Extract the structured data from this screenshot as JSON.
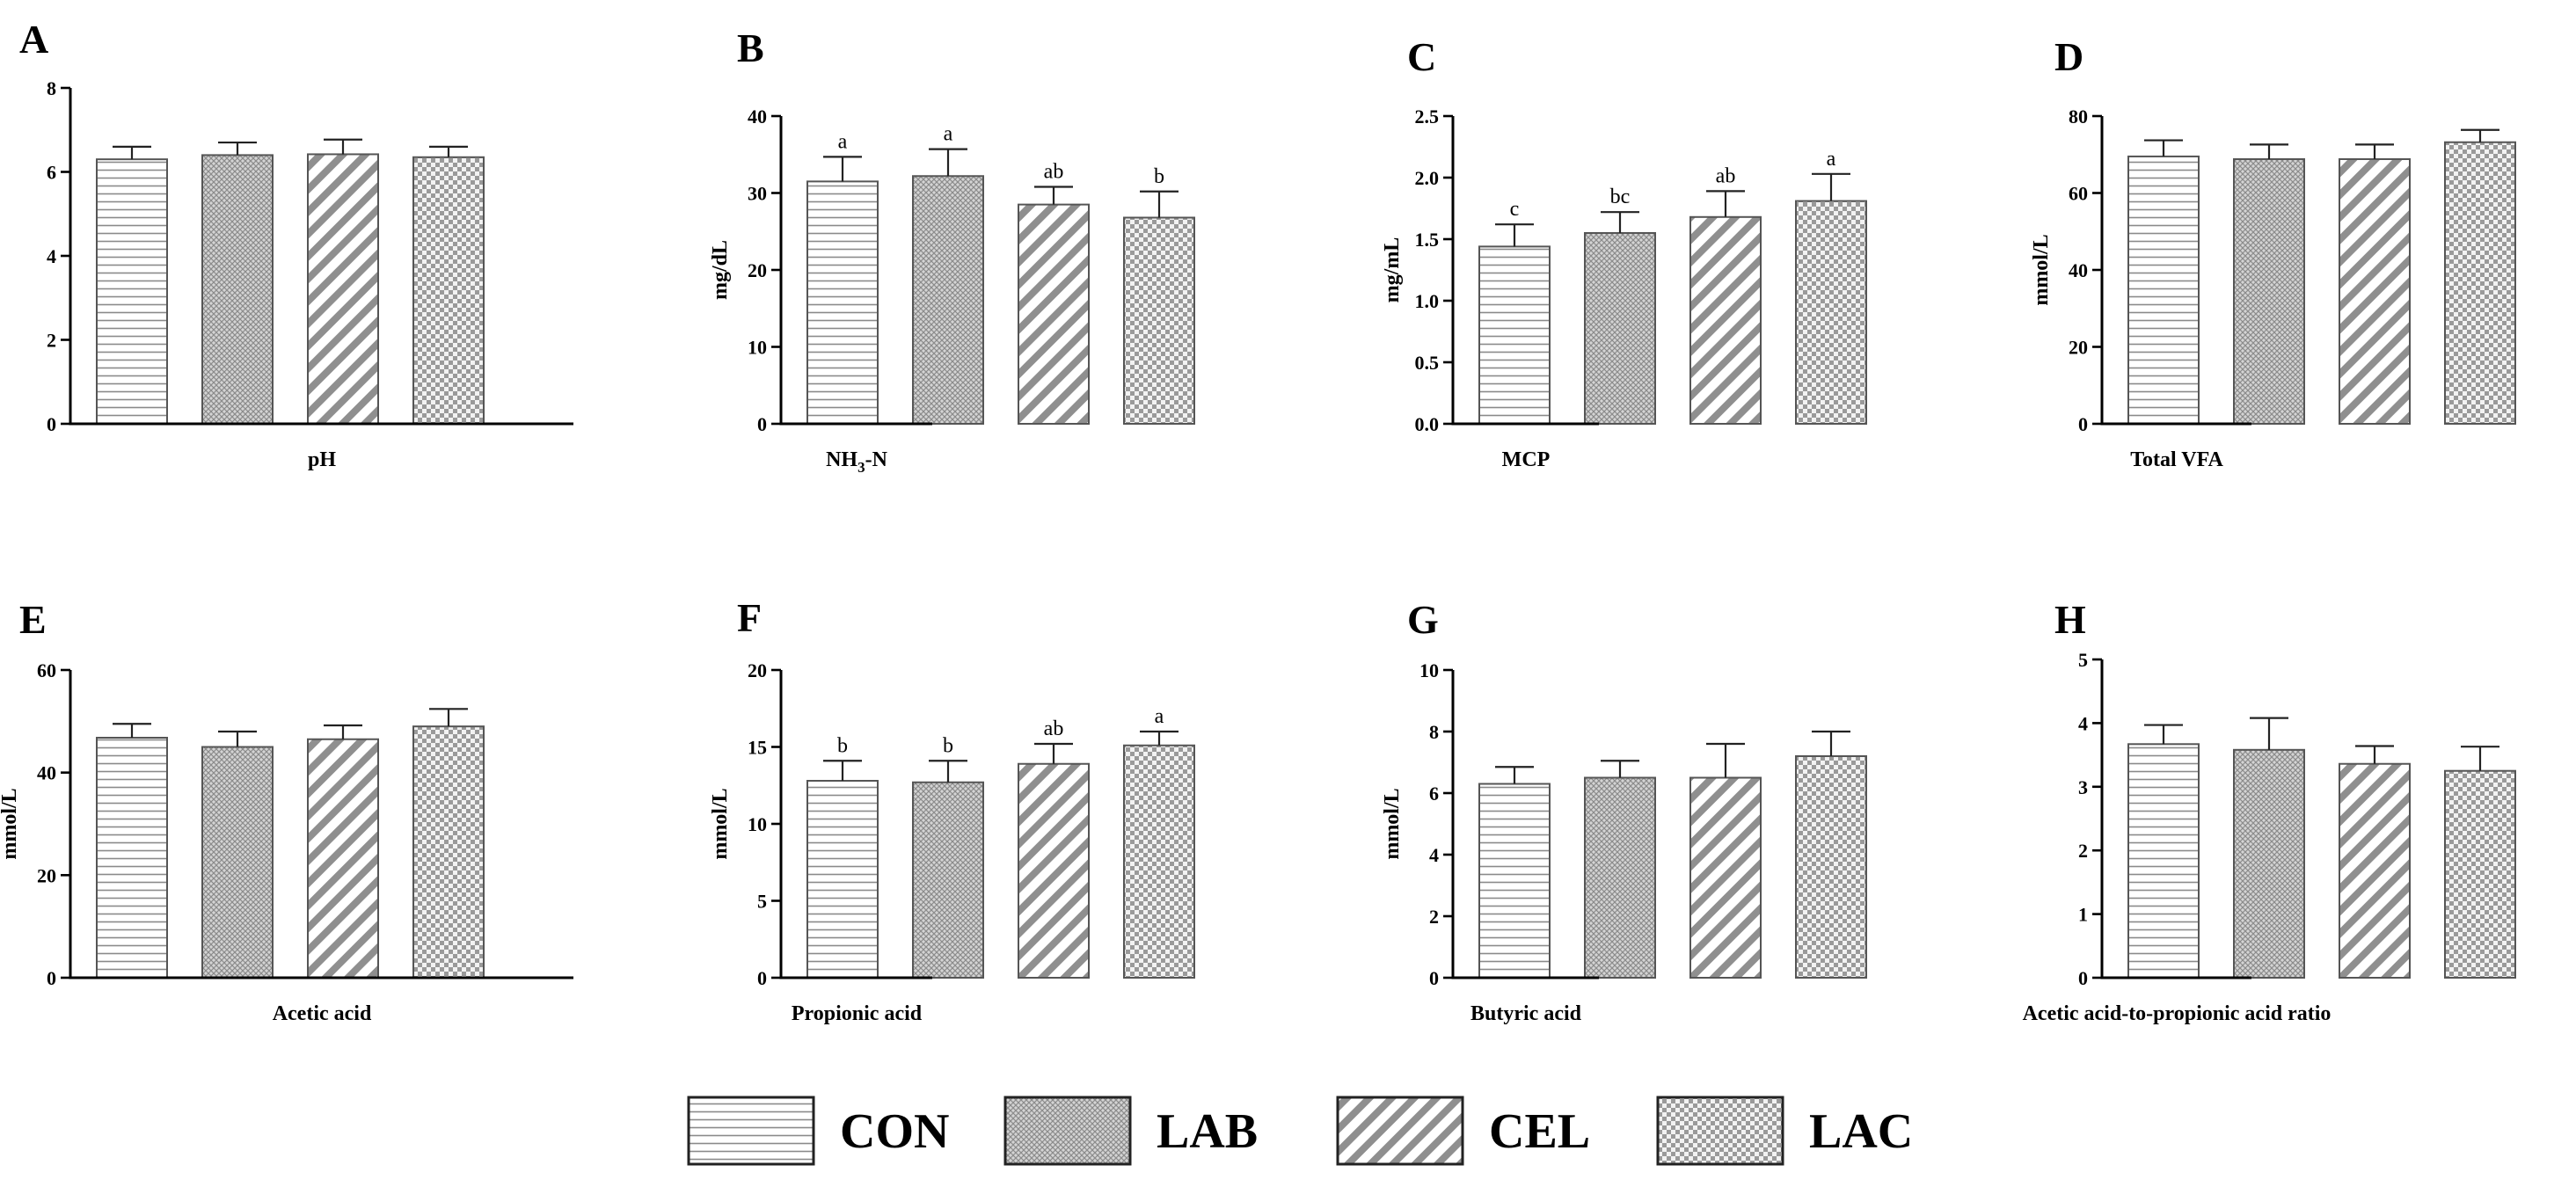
{
  "legend": {
    "items": [
      {
        "name": "CON",
        "pattern": "horizontal"
      },
      {
        "name": "LAB",
        "pattern": "fine-cross"
      },
      {
        "name": "CEL",
        "pattern": "diagonal"
      },
      {
        "name": "LAC",
        "pattern": "checker"
      }
    ]
  },
  "colors": {
    "axis": "#000000",
    "bar_stroke": "#555555",
    "pattern_ink": "#888888",
    "background": "#ffffff"
  },
  "chart_data": [
    {
      "panel": "A",
      "type": "bar",
      "xlabel": "pH",
      "ylabel": "",
      "ylim": [
        0,
        8
      ],
      "yticks": [
        "0",
        "2",
        "4",
        "6",
        "8"
      ],
      "categories": [
        "CON",
        "LAB",
        "CEL",
        "LAC"
      ],
      "values": [
        6.3,
        6.4,
        6.42,
        6.35
      ],
      "errors": [
        0.3,
        0.3,
        0.35,
        0.25
      ],
      "letters": [
        "",
        "",
        "",
        ""
      ]
    },
    {
      "panel": "B",
      "type": "bar",
      "xlabel": "NH₃-N",
      "ylabel": "mg/dL",
      "ylim": [
        0,
        40
      ],
      "yticks": [
        "0",
        "10",
        "20",
        "30",
        "40"
      ],
      "categories": [
        "CON",
        "LAB",
        "CEL",
        "LAC"
      ],
      "values": [
        31.5,
        32.2,
        28.5,
        26.8
      ],
      "errors": [
        3.2,
        3.5,
        2.3,
        3.4
      ],
      "letters": [
        "a",
        "a",
        "ab",
        "b"
      ]
    },
    {
      "panel": "C",
      "type": "bar",
      "xlabel": "MCP",
      "ylabel": "mg/mL",
      "ylim": [
        0,
        2.5
      ],
      "yticks": [
        "0.0",
        "0.5",
        "1.0",
        "1.5",
        "2.0",
        "2.5"
      ],
      "categories": [
        "CON",
        "LAB",
        "CEL",
        "LAC"
      ],
      "values": [
        1.44,
        1.55,
        1.68,
        1.81
      ],
      "errors": [
        0.18,
        0.17,
        0.21,
        0.22
      ],
      "letters": [
        "c",
        "bc",
        "ab",
        "a"
      ]
    },
    {
      "panel": "D",
      "type": "bar",
      "xlabel": "Total VFA",
      "ylabel": "mmol/L",
      "ylim": [
        0,
        80
      ],
      "yticks": [
        "0",
        "20",
        "40",
        "60",
        "80"
      ],
      "categories": [
        "CON",
        "LAB",
        "CEL",
        "LAC"
      ],
      "values": [
        69.5,
        68.8,
        68.8,
        73.2
      ],
      "errors": [
        4.2,
        3.8,
        3.8,
        3.2
      ],
      "letters": [
        "",
        "",
        "",
        ""
      ]
    },
    {
      "panel": "E",
      "type": "bar",
      "xlabel": "Acetic acid",
      "ylabel": "mmol/L",
      "ylim": [
        0,
        60
      ],
      "yticks": [
        "0",
        "20",
        "40",
        "60"
      ],
      "categories": [
        "CON",
        "LAB",
        "CEL",
        "LAC"
      ],
      "values": [
        46.8,
        45.0,
        46.5,
        49.0
      ],
      "errors": [
        2.7,
        3.0,
        2.7,
        3.4
      ],
      "letters": [
        "",
        "",
        "",
        ""
      ]
    },
    {
      "panel": "F",
      "type": "bar",
      "xlabel": "Propionic acid",
      "ylabel": "mmol/L",
      "ylim": [
        0,
        20
      ],
      "yticks": [
        "0",
        "5",
        "10",
        "15",
        "20"
      ],
      "categories": [
        "CON",
        "LAB",
        "CEL",
        "LAC"
      ],
      "values": [
        12.8,
        12.7,
        13.9,
        15.1
      ],
      "errors": [
        1.3,
        1.4,
        1.3,
        0.9
      ],
      "letters": [
        "b",
        "b",
        "ab",
        "a"
      ]
    },
    {
      "panel": "G",
      "type": "bar",
      "xlabel": "Butyric acid",
      "ylabel": "mmol/L",
      "ylim": [
        0,
        10
      ],
      "yticks": [
        "0",
        "2",
        "4",
        "6",
        "8",
        "10"
      ],
      "categories": [
        "CON",
        "LAB",
        "CEL",
        "LAC"
      ],
      "values": [
        6.3,
        6.5,
        6.5,
        7.2
      ],
      "errors": [
        0.55,
        0.55,
        1.1,
        0.8
      ],
      "letters": [
        "",
        "",
        "",
        ""
      ]
    },
    {
      "panel": "H",
      "type": "bar",
      "xlabel": "Acetic acid-to-propionic acid ratio",
      "ylabel": "",
      "ylim": [
        0,
        5
      ],
      "yticks": [
        "0",
        "1",
        "2",
        "3",
        "4",
        "5"
      ],
      "categories": [
        "CON",
        "LAB",
        "CEL",
        "LAC"
      ],
      "values": [
        3.67,
        3.58,
        3.36,
        3.25
      ],
      "errors": [
        0.3,
        0.5,
        0.28,
        0.38
      ],
      "letters": [
        "",
        "",
        "",
        ""
      ]
    }
  ]
}
